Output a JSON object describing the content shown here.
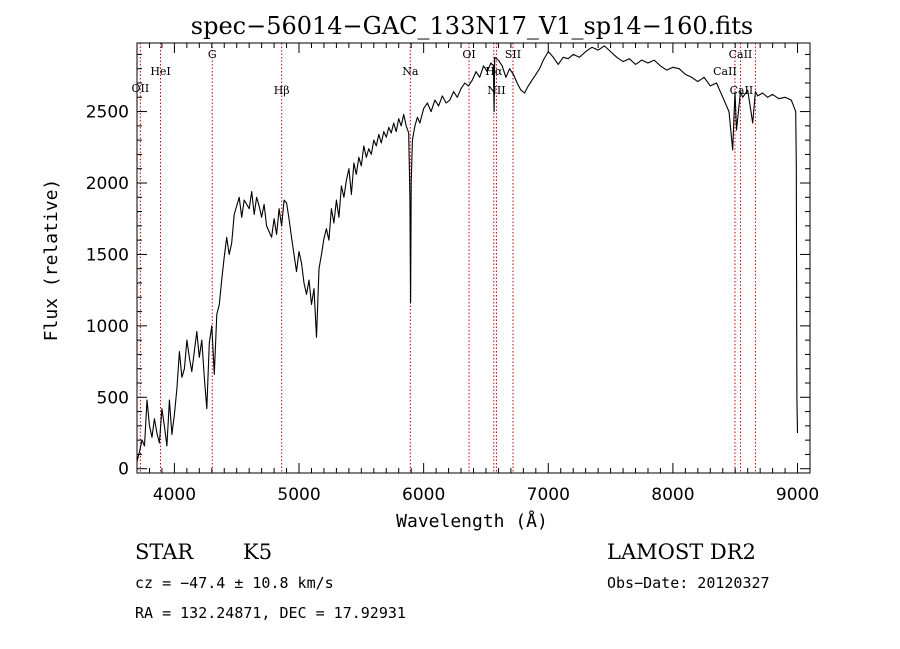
{
  "chart_data": {
    "type": "line",
    "title": "spec−56014−GAC_133N17_V1_sp14−160.fits",
    "xlabel": "Wavelength (Å)",
    "ylabel": "Flux (relative)",
    "xlim": [
      3700,
      9100
    ],
    "ylim": [
      -30,
      2980
    ],
    "x_ticks": [
      4000,
      5000,
      6000,
      7000,
      8000,
      9000
    ],
    "y_ticks": [
      0,
      500,
      1000,
      1500,
      2000,
      2500
    ],
    "grid": false,
    "series": [
      {
        "x": [
          3700,
          3720,
          3740,
          3760,
          3780,
          3800,
          3820,
          3840,
          3860,
          3880,
          3900,
          3920,
          3940,
          3960,
          3980,
          4000,
          4020,
          4040,
          4060,
          4080,
          4100,
          4120,
          4140,
          4160,
          4180,
          4200,
          4220,
          4240,
          4260,
          4280,
          4300,
          4320,
          4340,
          4360,
          4380,
          4400,
          4420,
          4440,
          4460,
          4480,
          4500,
          4520,
          4540,
          4560,
          4580,
          4600,
          4620,
          4640,
          4660,
          4680,
          4700,
          4720,
          4740,
          4760,
          4780,
          4800,
          4820,
          4840,
          4860,
          4880,
          4900,
          4920,
          4940,
          4960,
          4980,
          5000,
          5020,
          5040,
          5060,
          5080,
          5100,
          5120,
          5140,
          5160,
          5180,
          5200,
          5220,
          5240,
          5260,
          5280,
          5300,
          5320,
          5340,
          5360,
          5380,
          5400,
          5420,
          5440,
          5460,
          5480,
          5500,
          5520,
          5540,
          5560,
          5580,
          5600,
          5620,
          5640,
          5660,
          5680,
          5700,
          5720,
          5740,
          5760,
          5780,
          5800,
          5820,
          5840,
          5860,
          5880,
          5890,
          5895,
          5900,
          5910,
          5930,
          5950,
          5970,
          6000,
          6030,
          6060,
          6090,
          6120,
          6150,
          6180,
          6210,
          6240,
          6270,
          6300,
          6330,
          6360,
          6390,
          6420,
          6450,
          6480,
          6510,
          6540,
          6560,
          6565,
          6570,
          6600,
          6630,
          6660,
          6690,
          6720,
          6750,
          6780,
          6810,
          6840,
          6870,
          6900,
          6930,
          6960,
          7000,
          7040,
          7080,
          7120,
          7160,
          7200,
          7250,
          7300,
          7350,
          7400,
          7450,
          7500,
          7550,
          7600,
          7650,
          7700,
          7750,
          7800,
          7850,
          7900,
          7950,
          8000,
          8050,
          8100,
          8150,
          8200,
          8250,
          8300,
          8350,
          8400,
          8450,
          8480,
          8498,
          8510,
          8542,
          8560,
          8600,
          8640,
          8662,
          8680,
          8720,
          8760,
          8800,
          8850,
          8900,
          8950,
          8985,
          8990,
          8995,
          9000
        ],
        "values": [
          50,
          120,
          200,
          160,
          480,
          300,
          220,
          350,
          250,
          180,
          420,
          300,
          160,
          480,
          240,
          380,
          560,
          820,
          640,
          700,
          900,
          780,
          680,
          820,
          960,
          780,
          900,
          640,
          420,
          880,
          1000,
          660,
          1080,
          1150,
          1320,
          1480,
          1620,
          1500,
          1580,
          1780,
          1840,
          1900,
          1760,
          1880,
          1850,
          1820,
          1940,
          1780,
          1900,
          1840,
          1760,
          1850,
          1700,
          1660,
          1620,
          1750,
          1640,
          1820,
          1700,
          1880,
          1860,
          1750,
          1620,
          1500,
          1380,
          1520,
          1440,
          1300,
          1220,
          1320,
          1150,
          1260,
          920,
          1400,
          1500,
          1610,
          1680,
          1600,
          1820,
          1720,
          1880,
          1760,
          1980,
          1900,
          2020,
          2100,
          1920,
          2140,
          2060,
          2180,
          2120,
          2260,
          2180,
          2240,
          2200,
          2300,
          2260,
          2340,
          2280,
          2360,
          2320,
          2390,
          2350,
          2420,
          2360,
          2450,
          2400,
          2480,
          2400,
          2350,
          1900,
          1160,
          2000,
          2300,
          2400,
          2460,
          2420,
          2520,
          2560,
          2500,
          2580,
          2540,
          2610,
          2560,
          2580,
          2640,
          2600,
          2660,
          2700,
          2680,
          2720,
          2780,
          2740,
          2820,
          2780,
          2840,
          2820,
          2500,
          2880,
          2860,
          2820,
          2740,
          2800,
          2760,
          2700,
          2650,
          2630,
          2680,
          2720,
          2760,
          2800,
          2860,
          2920,
          2880,
          2830,
          2880,
          2870,
          2900,
          2880,
          2920,
          2950,
          2930,
          2960,
          2920,
          2880,
          2850,
          2870,
          2830,
          2860,
          2840,
          2860,
          2820,
          2790,
          2810,
          2800,
          2760,
          2740,
          2710,
          2740,
          2680,
          2700,
          2600,
          2500,
          2230,
          2640,
          2370,
          2640,
          2600,
          2650,
          2420,
          2640,
          2610,
          2630,
          2600,
          2620,
          2590,
          2600,
          2580,
          2500,
          2130,
          500,
          250
        ]
      }
    ],
    "lines": [
      {
        "label": "OII",
        "x": 3727
      },
      {
        "label": "HeI",
        "x": 3889
      },
      {
        "label": "G",
        "x": 4304
      },
      {
        "label": "Hβ",
        "x": 4861
      },
      {
        "label": "Na",
        "x": 5893
      },
      {
        "label": "OI",
        "x": 6364
      },
      {
        "label": "Hα",
        "x": 6563
      },
      {
        "label": "NII",
        "x": 6584
      },
      {
        "label": "SII",
        "x": 6717
      },
      {
        "label": "CaII",
        "x": 8498
      },
      {
        "label": "CaII",
        "x": 8542
      },
      {
        "label": "CaII",
        "x": 8662
      }
    ],
    "colors": {
      "spectrum": "#000000",
      "line_markers": "#cc0000",
      "axes": "#000000"
    }
  },
  "info": {
    "class": "STAR",
    "subclass": "K5",
    "survey": "LAMOST DR2",
    "cz": "cz = −47.4 ± 10.8 km/s",
    "obs_date": "Obs−Date: 20120327",
    "coords": "RA = 132.24871, DEC =  17.92931"
  }
}
